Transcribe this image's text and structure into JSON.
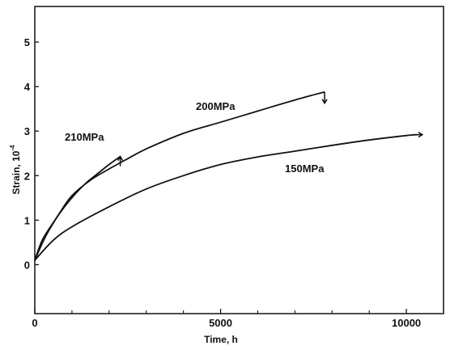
{
  "chart_data": {
    "type": "line",
    "title": "",
    "xlabel": "Time, h",
    "ylabel": "Strain, 10",
    "ylabel_exponent": "-4",
    "xlim": [
      0,
      11000
    ],
    "ylim": [
      -1.1,
      5.8
    ],
    "x_ticks": [
      0,
      5000,
      10000
    ],
    "x_minor_ticks": [
      1000,
      2000,
      3000,
      4000,
      6000,
      7000,
      8000,
      9000
    ],
    "y_ticks": [
      0,
      1,
      2,
      3,
      4,
      5
    ],
    "grid": false,
    "legend": "none",
    "series": [
      {
        "name": "210MPa",
        "end_arrow": "up",
        "points": [
          [
            0,
            0.1
          ],
          [
            200,
            0.55
          ],
          [
            500,
            0.95
          ],
          [
            800,
            1.3
          ],
          [
            1100,
            1.6
          ],
          [
            1400,
            1.85
          ],
          [
            1700,
            2.05
          ],
          [
            2000,
            2.25
          ],
          [
            2300,
            2.43
          ]
        ]
      },
      {
        "name": "200MPa",
        "end_arrow": "down",
        "points": [
          [
            0,
            0.1
          ],
          [
            300,
            0.65
          ],
          [
            700,
            1.2
          ],
          [
            1000,
            1.55
          ],
          [
            1500,
            1.9
          ],
          [
            2000,
            2.15
          ],
          [
            2500,
            2.38
          ],
          [
            3000,
            2.6
          ],
          [
            4000,
            2.95
          ],
          [
            5000,
            3.2
          ],
          [
            6000,
            3.45
          ],
          [
            7000,
            3.7
          ],
          [
            7800,
            3.88
          ]
        ]
      },
      {
        "name": "150MPa",
        "end_arrow": "right",
        "points": [
          [
            0,
            0.1
          ],
          [
            500,
            0.55
          ],
          [
            1000,
            0.85
          ],
          [
            2000,
            1.3
          ],
          [
            3000,
            1.7
          ],
          [
            4000,
            2.0
          ],
          [
            5000,
            2.25
          ],
          [
            6000,
            2.42
          ],
          [
            7000,
            2.55
          ],
          [
            8000,
            2.68
          ],
          [
            9000,
            2.8
          ],
          [
            10000,
            2.9
          ],
          [
            10300,
            2.92
          ]
        ]
      }
    ]
  }
}
